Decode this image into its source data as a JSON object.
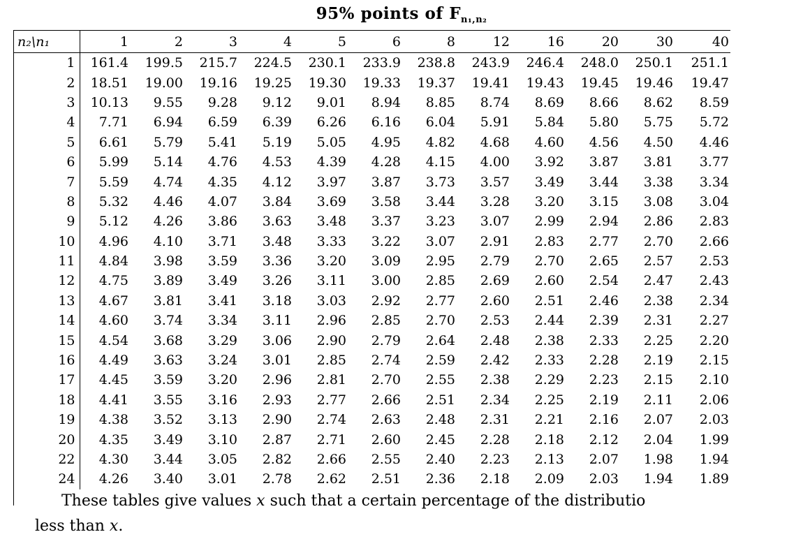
{
  "title": {
    "main": "95% points of F",
    "sub": "n₁,n₂"
  },
  "table": {
    "corner_label": "n₂\\n₁",
    "columns": [
      "1",
      "2",
      "3",
      "4",
      "5",
      "6",
      "8",
      "12",
      "16",
      "20",
      "30",
      "40"
    ],
    "rows": [
      {
        "n2": "1",
        "values": [
          "161.4",
          "199.5",
          "215.7",
          "224.5",
          "230.1",
          "233.9",
          "238.8",
          "243.9",
          "246.4",
          "248.0",
          "250.1",
          "251.1"
        ]
      },
      {
        "n2": "2",
        "values": [
          "18.51",
          "19.00",
          "19.16",
          "19.25",
          "19.30",
          "19.33",
          "19.37",
          "19.41",
          "19.43",
          "19.45",
          "19.46",
          "19.47"
        ]
      },
      {
        "n2": "3",
        "values": [
          "10.13",
          "9.55",
          "9.28",
          "9.12",
          "9.01",
          "8.94",
          "8.85",
          "8.74",
          "8.69",
          "8.66",
          "8.62",
          "8.59"
        ]
      },
      {
        "n2": "4",
        "values": [
          "7.71",
          "6.94",
          "6.59",
          "6.39",
          "6.26",
          "6.16",
          "6.04",
          "5.91",
          "5.84",
          "5.80",
          "5.75",
          "5.72"
        ]
      },
      {
        "n2": "5",
        "values": [
          "6.61",
          "5.79",
          "5.41",
          "5.19",
          "5.05",
          "4.95",
          "4.82",
          "4.68",
          "4.60",
          "4.56",
          "4.50",
          "4.46"
        ]
      },
      {
        "n2": "6",
        "values": [
          "5.99",
          "5.14",
          "4.76",
          "4.53",
          "4.39",
          "4.28",
          "4.15",
          "4.00",
          "3.92",
          "3.87",
          "3.81",
          "3.77"
        ]
      },
      {
        "n2": "7",
        "values": [
          "5.59",
          "4.74",
          "4.35",
          "4.12",
          "3.97",
          "3.87",
          "3.73",
          "3.57",
          "3.49",
          "3.44",
          "3.38",
          "3.34"
        ]
      },
      {
        "n2": "8",
        "values": [
          "5.32",
          "4.46",
          "4.07",
          "3.84",
          "3.69",
          "3.58",
          "3.44",
          "3.28",
          "3.20",
          "3.15",
          "3.08",
          "3.04"
        ]
      },
      {
        "n2": "9",
        "values": [
          "5.12",
          "4.26",
          "3.86",
          "3.63",
          "3.48",
          "3.37",
          "3.23",
          "3.07",
          "2.99",
          "2.94",
          "2.86",
          "2.83"
        ]
      },
      {
        "n2": "10",
        "values": [
          "4.96",
          "4.10",
          "3.71",
          "3.48",
          "3.33",
          "3.22",
          "3.07",
          "2.91",
          "2.83",
          "2.77",
          "2.70",
          "2.66"
        ]
      },
      {
        "n2": "11",
        "values": [
          "4.84",
          "3.98",
          "3.59",
          "3.36",
          "3.20",
          "3.09",
          "2.95",
          "2.79",
          "2.70",
          "2.65",
          "2.57",
          "2.53"
        ]
      },
      {
        "n2": "12",
        "values": [
          "4.75",
          "3.89",
          "3.49",
          "3.26",
          "3.11",
          "3.00",
          "2.85",
          "2.69",
          "2.60",
          "2.54",
          "2.47",
          "2.43"
        ]
      },
      {
        "n2": "13",
        "values": [
          "4.67",
          "3.81",
          "3.41",
          "3.18",
          "3.03",
          "2.92",
          "2.77",
          "2.60",
          "2.51",
          "2.46",
          "2.38",
          "2.34"
        ]
      },
      {
        "n2": "14",
        "values": [
          "4.60",
          "3.74",
          "3.34",
          "3.11",
          "2.96",
          "2.85",
          "2.70",
          "2.53",
          "2.44",
          "2.39",
          "2.31",
          "2.27"
        ]
      },
      {
        "n2": "15",
        "values": [
          "4.54",
          "3.68",
          "3.29",
          "3.06",
          "2.90",
          "2.79",
          "2.64",
          "2.48",
          "2.38",
          "2.33",
          "2.25",
          "2.20"
        ]
      },
      {
        "n2": "16",
        "values": [
          "4.49",
          "3.63",
          "3.24",
          "3.01",
          "2.85",
          "2.74",
          "2.59",
          "2.42",
          "2.33",
          "2.28",
          "2.19",
          "2.15"
        ]
      },
      {
        "n2": "17",
        "values": [
          "4.45",
          "3.59",
          "3.20",
          "2.96",
          "2.81",
          "2.70",
          "2.55",
          "2.38",
          "2.29",
          "2.23",
          "2.15",
          "2.10"
        ]
      },
      {
        "n2": "18",
        "values": [
          "4.41",
          "3.55",
          "3.16",
          "2.93",
          "2.77",
          "2.66",
          "2.51",
          "2.34",
          "2.25",
          "2.19",
          "2.11",
          "2.06"
        ]
      },
      {
        "n2": "19",
        "values": [
          "4.38",
          "3.52",
          "3.13",
          "2.90",
          "2.74",
          "2.63",
          "2.48",
          "2.31",
          "2.21",
          "2.16",
          "2.07",
          "2.03"
        ]
      },
      {
        "n2": "20",
        "values": [
          "4.35",
          "3.49",
          "3.10",
          "2.87",
          "2.71",
          "2.60",
          "2.45",
          "2.28",
          "2.18",
          "2.12",
          "2.04",
          "1.99"
        ]
      },
      {
        "n2": "22",
        "values": [
          "4.30",
          "3.44",
          "3.05",
          "2.82",
          "2.66",
          "2.55",
          "2.40",
          "2.23",
          "2.13",
          "2.07",
          "1.98",
          "1.94"
        ]
      },
      {
        "n2": "24",
        "values": [
          "4.26",
          "3.40",
          "3.01",
          "2.78",
          "2.62",
          "2.51",
          "2.36",
          "2.18",
          "2.09",
          "2.03",
          "1.94",
          "1.89"
        ]
      }
    ]
  },
  "paragraph": {
    "line1_pre": "These tables give values ",
    "line1_var": "x",
    "line1_post": " such that a certain percentage of the distributio",
    "line2_pre": "less than ",
    "line2_var": "x",
    "line2_post": "."
  }
}
